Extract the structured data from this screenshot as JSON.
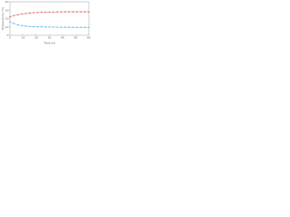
{
  "chart_data": {
    "type": "line",
    "y_label": "Temperature (°C)",
    "x_label": "Time (h)",
    "x": [
      0,
      3,
      6,
      9,
      12,
      15,
      18,
      21,
      24,
      27,
      30,
      33,
      36,
      39,
      42,
      45,
      48,
      51,
      54,
      57,
      60
    ],
    "series": [
      {
        "name": "Upper",
        "color": "#e8474c",
        "values": [
          22,
          23.5,
          24.5,
          25.5,
          26,
          26.5,
          27,
          27.2,
          27.5,
          27.6,
          27.8,
          27.8,
          28,
          28,
          28,
          28.1,
          28,
          28.1,
          28,
          28.1,
          28
        ]
      },
      {
        "name": "Lower",
        "color": "#36b7e6",
        "values": [
          16,
          14,
          12.5,
          11.5,
          11,
          10.5,
          10.2,
          10,
          10,
          9.8,
          9.8,
          9.7,
          9.7,
          9.6,
          9.6,
          9.6,
          9.5,
          9.5,
          9.5,
          9.5,
          9.5
        ]
      }
    ],
    "xlim": [
      0,
      60
    ],
    "xticks": [
      0,
      10,
      20,
      30,
      40,
      50,
      60
    ],
    "ylim": [
      0,
      40
    ],
    "yticks": [
      0,
      10,
      20,
      30,
      40
    ],
    "grid": false
  }
}
